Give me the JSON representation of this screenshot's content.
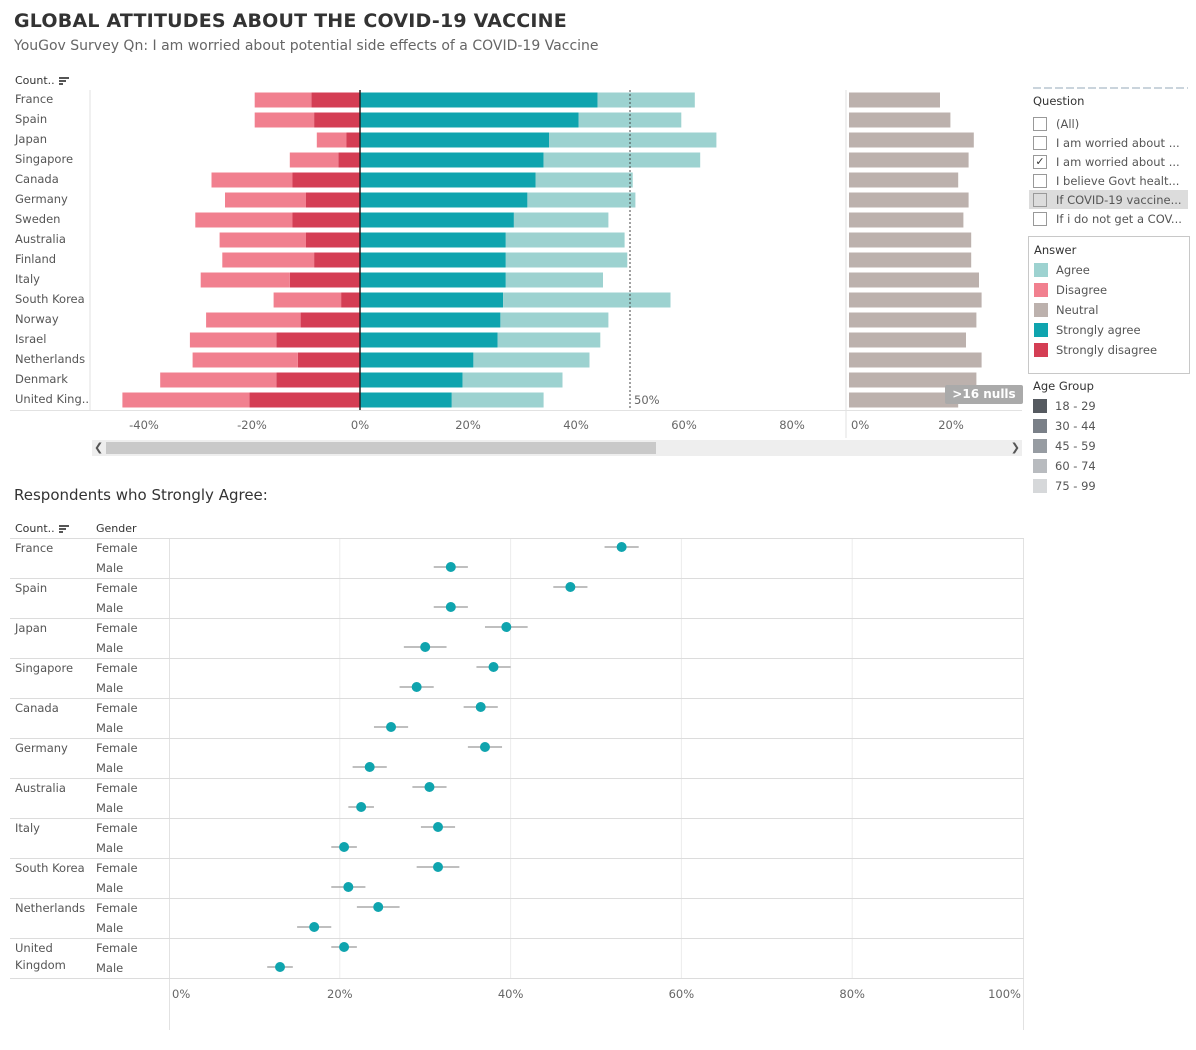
{
  "title": "GLOBAL ATTITUDES ABOUT THE COVID-19 VACCINE",
  "subtitle": "YouGov Survey Qn: I am worried about potential side effects of a COVID-19 Vaccine",
  "top_chart": {
    "header_country": "Count..",
    "reference_label": "50%",
    "nulls_badge": ">16 nulls",
    "main_ticks": [
      "-40%",
      "-20%",
      "0%",
      "20%",
      "40%",
      "60%",
      "80%"
    ],
    "neutral_ticks": [
      "0%",
      "20%"
    ]
  },
  "filters": {
    "question_title": "Question",
    "question_items": [
      {
        "label": "(All)",
        "checked": false
      },
      {
        "label": "I am worried about ...",
        "checked": false
      },
      {
        "label": "I am worried about ...",
        "checked": true
      },
      {
        "label": "I believe Govt healt...",
        "checked": false
      },
      {
        "label": "If COVID-19 vaccine...",
        "checked": false,
        "highlighted": true
      },
      {
        "label": "If i do not get a COV...",
        "checked": false
      }
    ],
    "answer_title": "Answer",
    "answer_items": [
      {
        "label": "Agree",
        "color": "#9dd2d0"
      },
      {
        "label": "Disagree",
        "color": "#f1808f"
      },
      {
        "label": "Neutral",
        "color": "#bcb1ad"
      },
      {
        "label": "Strongly agree",
        "color": "#0fa4ae"
      },
      {
        "label": "Strongly disagree",
        "color": "#d43e54"
      }
    ],
    "age_title": "Age Group",
    "age_items": [
      {
        "label": "18 - 29",
        "color": "#555a60"
      },
      {
        "label": "30 - 44",
        "color": "#7a8088"
      },
      {
        "label": "45 - 59",
        "color": "#979ca2"
      },
      {
        "label": "60 - 74",
        "color": "#b8bbbf"
      },
      {
        "label": "75 - 99",
        "color": "#d6d8da"
      }
    ]
  },
  "section2": {
    "title": "Respondents who Strongly Agree:",
    "header_country": "Count..",
    "header_gender": "Gender",
    "ticks": [
      "0%",
      "20%",
      "40%",
      "60%",
      "80%",
      "100%"
    ]
  },
  "chart_data": [
    {
      "type": "bar",
      "subtype": "diverging-stacked",
      "categories": [
        "France",
        "Spain",
        "Japan",
        "Singapore",
        "Canada",
        "Germany",
        "Sweden",
        "Australia",
        "Finland",
        "Italy",
        "South Korea",
        "Norway",
        "Israel",
        "Netherlands",
        "Denmark",
        "United King.."
      ],
      "series": [
        {
          "name": "Strongly disagree",
          "color": "#d43e54",
          "values": [
            -9,
            -8.5,
            -2.5,
            -4,
            -12.5,
            -10,
            -12.5,
            -10,
            -8.5,
            -13,
            -3.5,
            -11,
            -15.5,
            -11.5,
            -15.5,
            -20.5
          ]
        },
        {
          "name": "Disagree",
          "color": "#f1808f",
          "values": [
            -10.5,
            -11,
            -5.5,
            -9,
            -15,
            -15,
            -18,
            -16,
            -17,
            -16.5,
            -12.5,
            -17.5,
            -16,
            -19.5,
            -21.5,
            -23.5
          ]
        },
        {
          "name": "Strongly agree",
          "color": "#0fa4ae",
          "values": [
            44,
            40.5,
            35,
            34,
            32.5,
            31,
            28.5,
            27,
            27,
            27,
            26.5,
            26,
            25.5,
            21,
            19,
            17
          ]
        },
        {
          "name": "Agree",
          "color": "#9dd2d0",
          "values": [
            18,
            19,
            31,
            29,
            18,
            20,
            17.5,
            22,
            22.5,
            18,
            31,
            20,
            19,
            21.5,
            18.5,
            17
          ]
        }
      ],
      "xlim": [
        -50,
        122
      ],
      "reference_line": 50
    },
    {
      "type": "bar",
      "subtype": "neutral",
      "categories": [
        "France",
        "Spain",
        "Japan",
        "Singapore",
        "Canada",
        "Germany",
        "Sweden",
        "Australia",
        "Finland",
        "Italy",
        "South Korea",
        "Norway",
        "Israel",
        "Netherlands",
        "Denmark",
        "United King.."
      ],
      "series": [
        {
          "name": "Neutral",
          "color": "#bcb1ad",
          "values": [
            17.5,
            19.5,
            24,
            23,
            21,
            23,
            22,
            23.5,
            23.5,
            25,
            25.5,
            24.5,
            22.5,
            25.5,
            24.5,
            21
          ]
        }
      ],
      "xlim": [
        0,
        32
      ]
    },
    {
      "type": "scatter",
      "subtype": "dot-with-error-bars",
      "title": "Respondents who Strongly Agree:",
      "categories": [
        "France",
        "Spain",
        "Japan",
        "Singapore",
        "Canada",
        "Germany",
        "Australia",
        "Italy",
        "South Korea",
        "Netherlands",
        "United Kingdom"
      ],
      "genders": [
        "Female",
        "Male"
      ],
      "female": [
        53,
        47,
        39.5,
        38,
        36.5,
        37,
        30.5,
        31.5,
        31.5,
        24.5,
        20.5
      ],
      "male": [
        33,
        33,
        30,
        29,
        26,
        23.5,
        22.5,
        20.5,
        21,
        17,
        13
      ],
      "female_err": [
        2,
        2,
        2.5,
        2,
        2,
        2,
        2,
        2,
        2.5,
        2.5,
        1.5
      ],
      "male_err": [
        2,
        2,
        2.5,
        2,
        2,
        2,
        1.5,
        1.5,
        2,
        2,
        1.5
      ],
      "xlim": [
        0,
        100
      ],
      "color": "#0fa4ae"
    }
  ]
}
